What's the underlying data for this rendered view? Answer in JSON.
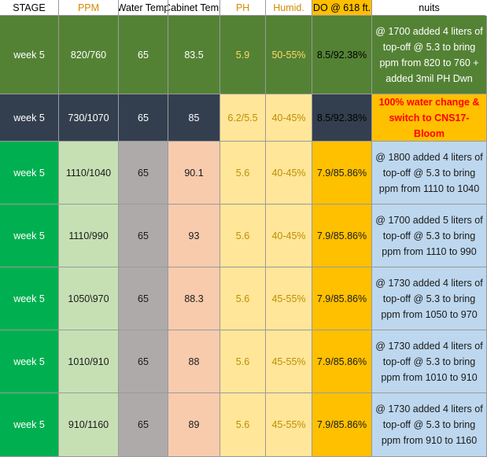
{
  "headers": [
    "STAGE",
    "PPM",
    "Water Temp",
    "Cabinet Temp",
    "PH",
    "Humid.",
    "DO @ 618 ft.",
    "nuits"
  ],
  "header_colors": {
    "bg": [
      "#ffffff",
      "#ffffff",
      "#ffffff",
      "#ffffff",
      "#ffffff",
      "#ffffff",
      "#ffbf00",
      "#ffffff"
    ],
    "fg": [
      "#000000",
      "#d48a00",
      "#000000",
      "#000000",
      "#d48a00",
      "#d48a00",
      "#000000",
      "#000000"
    ]
  },
  "rows": [
    {
      "stage": "week 5",
      "ppm": "820/760",
      "water_temp": "65",
      "cabinet_temp": "83.5",
      "ph": "5.9",
      "humid": "50-55%",
      "do": "8.5/92.38%",
      "notes": "@ 1700 added 4 liters of top-off @ 5.3 to bring ppm from 820 to 760 + added 3mil PH Dwn",
      "notes_style": "normal",
      "colors": {
        "bg": [
          "#548235",
          "#548235",
          "#548235",
          "#548235",
          "#548235",
          "#548235",
          "#548235",
          "#548235"
        ],
        "fg": [
          "#ffffff",
          "#ffffff",
          "#ffffff",
          "#ffffff",
          "#ffd966",
          "#ffd966",
          "#000000",
          "#ffffff"
        ]
      }
    },
    {
      "stage": "week 5",
      "ppm": "730/1070",
      "water_temp": "65",
      "cabinet_temp": "85",
      "ph": "6.2/5.5",
      "humid": "40-45%",
      "do": "8.5/92.38%",
      "notes": "100% water change & switch to CNS17-Bloom",
      "notes_style": "red",
      "colors": {
        "bg": [
          "#333f4f",
          "#333f4f",
          "#333f4f",
          "#333f4f",
          "#ffe699",
          "#ffe699",
          "#333f4f",
          "#ffc000"
        ],
        "fg": [
          "#ffffff",
          "#ffffff",
          "#ffffff",
          "#ffffff",
          "#bf8f00",
          "#bf8f00",
          "#000000",
          "#ff0000"
        ]
      }
    },
    {
      "stage": "week 5",
      "ppm": "1110/1040",
      "water_temp": "65",
      "cabinet_temp": "90.1",
      "ph": "5.6",
      "humid": "40-45%",
      "do": "7.9/85.86%",
      "notes": "@ 1800 added 4 liters of top-off @ 5.3 to bring ppm from 1110 to 1040",
      "notes_style": "normal",
      "colors": {
        "bg": [
          "#00b050",
          "#c6e0b4",
          "#aeaaaa",
          "#f8cbad",
          "#ffe699",
          "#ffe699",
          "#ffc000",
          "#bdd7ee"
        ],
        "fg": [
          "#ffffff",
          "#1a1a1a",
          "#1a1a1a",
          "#1a1a1a",
          "#bf8f00",
          "#bf8f00",
          "#1a1a1a",
          "#1a1a1a"
        ]
      }
    },
    {
      "stage": "week 5",
      "ppm": "1110/990",
      "water_temp": "65",
      "cabinet_temp": "93",
      "ph": "5.6",
      "humid": "40-45%",
      "do": "7.9/85.86%",
      "notes": "@ 1700 added 5 liters of top-off @ 5.3 to bring ppm from 1110 to 990",
      "notes_style": "normal",
      "colors": {
        "bg": [
          "#00b050",
          "#c6e0b4",
          "#aeaaaa",
          "#f8cbad",
          "#ffe699",
          "#ffe699",
          "#ffc000",
          "#bdd7ee"
        ],
        "fg": [
          "#ffffff",
          "#1a1a1a",
          "#1a1a1a",
          "#1a1a1a",
          "#bf8f00",
          "#bf8f00",
          "#1a1a1a",
          "#1a1a1a"
        ]
      }
    },
    {
      "stage": "week 5",
      "ppm": "1050\\970",
      "water_temp": "65",
      "cabinet_temp": "88.3",
      "ph": "5.6",
      "humid": "45-55%",
      "do": "7.9/85.86%",
      "notes": "@ 1730 added 4 liters of top-off @ 5.3 to bring ppm from 1050 to 970",
      "notes_style": "normal",
      "colors": {
        "bg": [
          "#00b050",
          "#c6e0b4",
          "#aeaaaa",
          "#f8cbad",
          "#ffe699",
          "#ffe699",
          "#ffc000",
          "#bdd7ee"
        ],
        "fg": [
          "#ffffff",
          "#1a1a1a",
          "#1a1a1a",
          "#1a1a1a",
          "#bf8f00",
          "#bf8f00",
          "#1a1a1a",
          "#1a1a1a"
        ]
      }
    },
    {
      "stage": "week 5",
      "ppm": "1010/910",
      "water_temp": "65",
      "cabinet_temp": "88",
      "ph": "5.6",
      "humid": "45-55%",
      "do": "7.9/85.86%",
      "notes": "@ 1730 added 4 liters of top-off @ 5.3 to bring ppm from 1010 to 910",
      "notes_style": "normal",
      "colors": {
        "bg": [
          "#00b050",
          "#c6e0b4",
          "#aeaaaa",
          "#f8cbad",
          "#ffe699",
          "#ffe699",
          "#ffc000",
          "#bdd7ee"
        ],
        "fg": [
          "#ffffff",
          "#1a1a1a",
          "#1a1a1a",
          "#1a1a1a",
          "#bf8f00",
          "#bf8f00",
          "#1a1a1a",
          "#1a1a1a"
        ]
      }
    },
    {
      "stage": "week 5",
      "ppm": "910/1160",
      "water_temp": "65",
      "cabinet_temp": "89",
      "ph": "5.6",
      "humid": "45-55%",
      "do": "7.9/85.86%",
      "notes": "@ 1730 added 4 liters of top-off @ 5.3 to bring ppm from 910 to 1160",
      "notes_style": "normal",
      "colors": {
        "bg": [
          "#00b050",
          "#c6e0b4",
          "#aeaaaa",
          "#f8cbad",
          "#ffe699",
          "#ffe699",
          "#ffc000",
          "#bdd7ee"
        ],
        "fg": [
          "#ffffff",
          "#1a1a1a",
          "#1a1a1a",
          "#1a1a1a",
          "#bf8f00",
          "#bf8f00",
          "#1a1a1a",
          "#1a1a1a"
        ]
      }
    }
  ]
}
